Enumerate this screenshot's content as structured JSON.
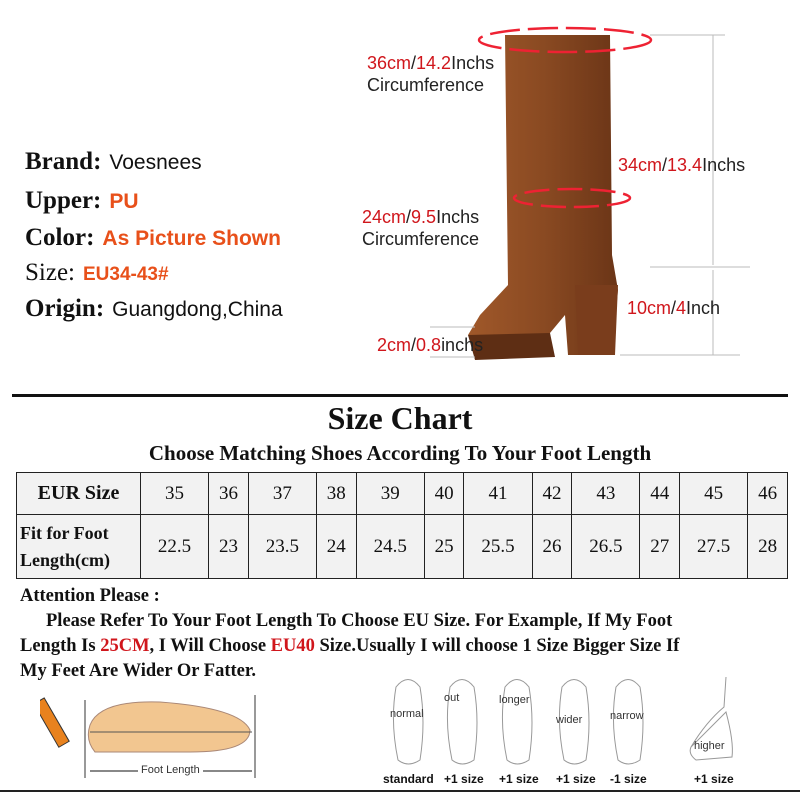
{
  "specs": {
    "brand": {
      "label": "Brand:",
      "value": "Voesnees"
    },
    "upper": {
      "label": "Upper:",
      "value": "PU"
    },
    "color": {
      "label": "Color:",
      "value": "As Picture Shown"
    },
    "size": {
      "label": "Size:",
      "value": "EU34-43#"
    },
    "origin": {
      "label": "Origin:",
      "value": "Guangdong,China"
    }
  },
  "measurements": {
    "top_circ": {
      "cm": "36cm",
      "sep": "/",
      "inch": "14.2",
      "unit": "Inchs",
      "label": "Circumference"
    },
    "shaft": {
      "cm": "34cm",
      "sep": "/",
      "inch": "13.4",
      "unit": "Inchs"
    },
    "calf_circ": {
      "cm": "24cm",
      "sep": "/",
      "inch": "9.5",
      "unit": "Inchs",
      "label": "Circumference"
    },
    "heel": {
      "cm": "10cm",
      "sep": "/",
      "inch": "4",
      "unit": "Inch"
    },
    "platform": {
      "cm": "2cm",
      "sep": "/",
      "inch": "0.8",
      "unit": "inchs"
    }
  },
  "size_chart": {
    "title": "Size Chart",
    "subtitle": "Choose Matching Shoes According To Your Foot Length",
    "row1_header": "EUR Size",
    "row2_header_line1": "Fit for Foot",
    "row2_header_line2": "Length(cm)",
    "eur": [
      "35",
      "36",
      "37",
      "38",
      "39",
      "40",
      "41",
      "42",
      "43",
      "44",
      "45",
      "46"
    ],
    "length": [
      "22.5",
      "23",
      "23.5",
      "24",
      "24.5",
      "25",
      "25.5",
      "26",
      "26.5",
      "27",
      "27.5",
      "28"
    ]
  },
  "attention": {
    "title": "Attention Please :",
    "p1": "Please Refer To Your Foot Length To Choose EU Size. For Example, If My Foot",
    "p2a": "Length Is ",
    "p2b": "25CM",
    "p2c": ", I Will Choose ",
    "p2d": "EU40",
    "p2e": " Size.Usually I will choose 1 Size Bigger Size If",
    "p3": "My Feet Are Wider Or Fatter."
  },
  "foot_length_label": "Foot Length",
  "foot_types": [
    {
      "label": "normal",
      "size": "standard"
    },
    {
      "label": "out",
      "size": "+1 size"
    },
    {
      "label": "longer",
      "size": "+1 size"
    },
    {
      "label": "wider",
      "size": "+1 size"
    },
    {
      "label": "narrow",
      "size": "-1 size"
    },
    {
      "label": "higher",
      "size": "+1 size"
    }
  ],
  "colors": {
    "accent_red": "#d0161c",
    "orange": "#e8501a",
    "boot": "#8a4a22"
  }
}
